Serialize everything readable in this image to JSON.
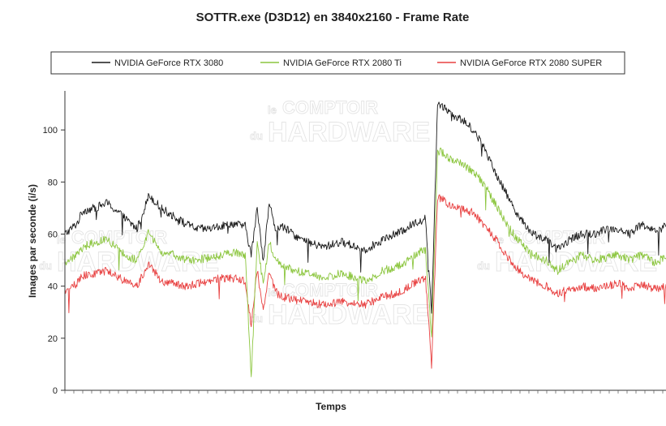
{
  "title": "SOTTR.exe (D3D12) en 3840x2160 - Frame Rate",
  "watermark": {
    "line1a": "le",
    "line1b": "COMPTOIR",
    "line2a": "du",
    "line2b": "HARDWARE"
  },
  "chart_data": {
    "type": "line",
    "title": "SOTTR.exe (D3D12) en 3840x2160 - Frame Rate",
    "xlabel": "Temps",
    "ylabel": "Images par seconde (i/s)",
    "ylim": [
      0,
      115
    ],
    "yticks": [
      "0",
      "20",
      "40",
      "60",
      "80",
      "100"
    ],
    "ytick_values": [
      0,
      20,
      40,
      60,
      80,
      100
    ],
    "xlim": [
      0,
      100
    ],
    "grid": false,
    "legend_position": "top",
    "series": [
      {
        "name": "NVIDIA GeForce RTX 3080",
        "color": "#1a1a1a",
        "x": [
          0,
          2,
          3,
          5,
          7,
          10,
          12,
          14,
          16,
          18,
          20,
          22,
          24,
          26,
          28,
          30,
          31,
          32,
          33,
          34,
          35,
          36,
          38,
          40,
          43,
          46,
          50,
          53,
          56,
          58,
          60,
          61,
          62,
          63,
          64,
          65,
          66,
          68,
          70,
          72,
          74,
          76,
          78,
          80,
          82,
          84,
          86,
          88,
          90,
          92,
          94,
          96,
          98,
          100
        ],
        "y": [
          60,
          64,
          69,
          70,
          72,
          66,
          62,
          75,
          70,
          67,
          64,
          62,
          62,
          63,
          64,
          63,
          52,
          70,
          50,
          72,
          62,
          63,
          60,
          57,
          55,
          57,
          54,
          58,
          61,
          64,
          66,
          30,
          110,
          109,
          107,
          105,
          104,
          100,
          92,
          82,
          73,
          65,
          60,
          58,
          54,
          58,
          60,
          60,
          62,
          62,
          60,
          64,
          61,
          63
        ]
      },
      {
        "name": "NVIDIA GeForce RTX 2080 Ti",
        "color": "#8cc63f",
        "x": [
          0,
          2,
          3,
          5,
          7,
          10,
          12,
          14,
          16,
          18,
          20,
          22,
          24,
          26,
          28,
          30,
          31,
          32,
          33,
          34,
          35,
          36,
          38,
          40,
          43,
          46,
          50,
          53,
          56,
          58,
          60,
          61,
          62,
          63,
          64,
          65,
          66,
          68,
          70,
          72,
          74,
          76,
          78,
          80,
          82,
          84,
          86,
          88,
          90,
          92,
          94,
          96,
          98,
          100
        ],
        "y": [
          49,
          52,
          55,
          57,
          58,
          52,
          50,
          61,
          53,
          52,
          50,
          50,
          51,
          52,
          53,
          52,
          5,
          58,
          40,
          57,
          50,
          48,
          46,
          45,
          43,
          45,
          42,
          46,
          48,
          52,
          54,
          20,
          92,
          91,
          89,
          88,
          87,
          84,
          78,
          70,
          62,
          56,
          52,
          50,
          46,
          50,
          52,
          50,
          51,
          52,
          50,
          52,
          49,
          51
        ]
      },
      {
        "name": "NVIDIA GeForce RTX 2080 SUPER",
        "color": "#e84040",
        "x": [
          0,
          2,
          3,
          5,
          7,
          10,
          12,
          14,
          16,
          18,
          20,
          22,
          24,
          26,
          28,
          30,
          31,
          32,
          33,
          34,
          35,
          36,
          38,
          40,
          43,
          46,
          50,
          53,
          56,
          58,
          60,
          61,
          62,
          63,
          64,
          65,
          66,
          68,
          70,
          72,
          74,
          76,
          78,
          80,
          82,
          84,
          86,
          88,
          90,
          92,
          94,
          96,
          98,
          100
        ],
        "y": [
          38,
          41,
          44,
          45,
          46,
          42,
          40,
          49,
          42,
          41,
          40,
          41,
          42,
          43,
          43,
          42,
          25,
          46,
          30,
          46,
          38,
          36,
          35,
          34,
          33,
          34,
          33,
          36,
          38,
          41,
          43,
          10,
          74,
          73,
          71,
          71,
          70,
          68,
          63,
          57,
          50,
          45,
          42,
          40,
          37,
          39,
          40,
          39,
          40,
          41,
          39,
          41,
          39,
          40
        ]
      }
    ]
  }
}
